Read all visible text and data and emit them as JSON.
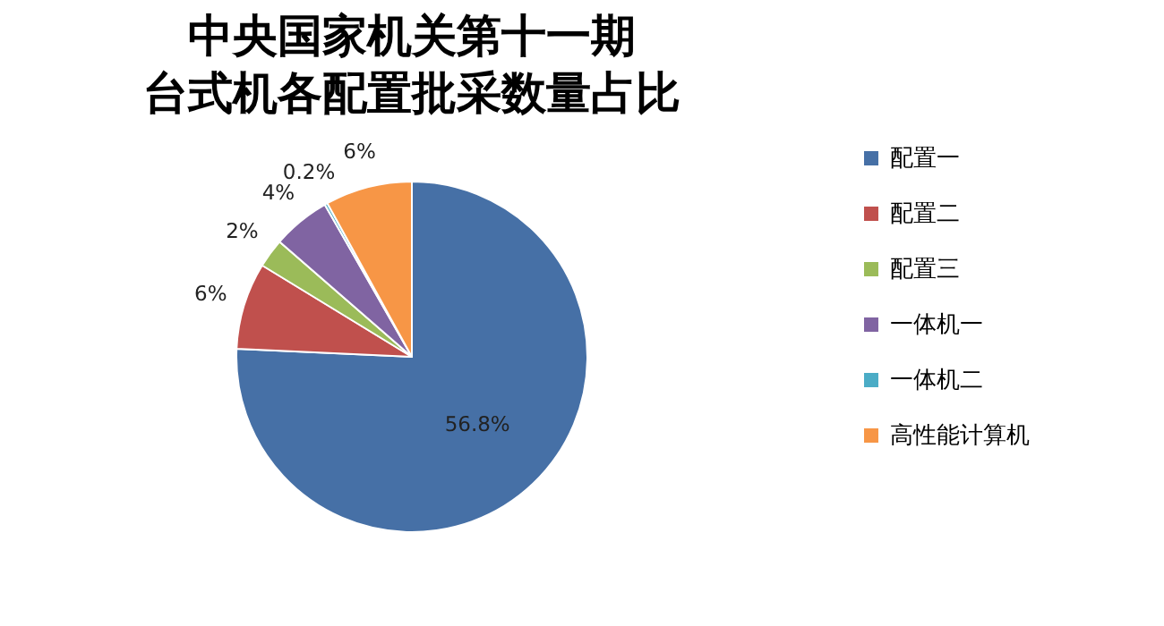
{
  "chart_data": {
    "type": "pie",
    "title": "中央国家机关第十一期台式机各配置批采数量占比",
    "categories": [
      "配置一",
      "配置二",
      "配置三",
      "一体机一",
      "一体机二",
      "高性能计算机"
    ],
    "values": [
      56.8,
      6,
      2,
      4,
      0.2,
      6
    ],
    "value_labels": [
      "56.8%",
      "6%",
      "2%",
      "4%",
      "0.2%",
      "6%"
    ],
    "colors": [
      "#4670a6",
      "#c0504d",
      "#9bbb59",
      "#8064a2",
      "#4bacc6",
      "#f79646"
    ],
    "legend": "right"
  }
}
